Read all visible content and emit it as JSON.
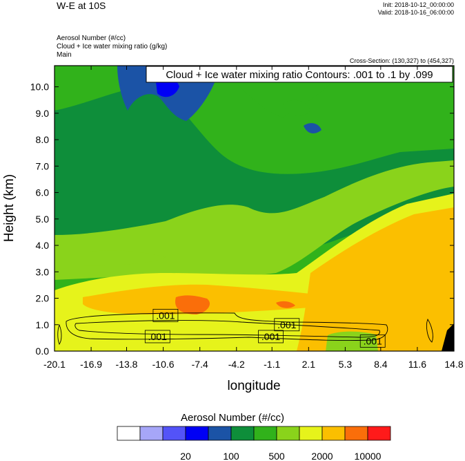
{
  "header": {
    "title": "W-E at 10S",
    "init": "Init: 2018-10-12_00:00:00",
    "valid": "Valid: 2018-10-16_06:00:00",
    "fields": [
      "Aerosol Number   (#/cc)",
      "Cloud + Ice water mixing ratio   (g/kg)",
      "Main"
    ],
    "cross_section": "Cross-Section: (130,327) to (454,327)"
  },
  "chart_data": {
    "type": "heatmap",
    "title": "W-E at 10S",
    "xlabel": "longitude",
    "ylabel": "Height (km)",
    "xticks": [
      "-20.1",
      "-16.9",
      "-13.8",
      "-10.6",
      "-7.4",
      "-4.2",
      "-1.1",
      "2.1",
      "5.3",
      "8.4",
      "11.6",
      "14.8"
    ],
    "xlim": [
      -20.1,
      14.8
    ],
    "yticks": [
      "0.0",
      "1.0",
      "2.0",
      "3.0",
      "4.0",
      "5.0",
      "6.0",
      "7.0",
      "8.0",
      "9.0",
      "10.0"
    ],
    "ylim": [
      0,
      10.8
    ],
    "contour_info": "Cloud + Ice water mixing ratio Contours: .001 to .1 by .099",
    "contour_labels": [
      {
        "text": ".001",
        "x": -10.4,
        "y": 1.35
      },
      {
        "text": ".001",
        "x": 0.2,
        "y": 1.0
      },
      {
        "text": ".001",
        "x": -11.1,
        "y": 0.55
      },
      {
        "text": ".001",
        "x": -1.2,
        "y": 0.55
      },
      {
        "text": ".001",
        "x": 7.7,
        "y": 0.38
      }
    ],
    "colorbar": {
      "title": "Aerosol Number  (#/cc)",
      "colors": [
        "#ffffff",
        "#a6a6f8",
        "#5353f8",
        "#0000f5",
        "#1b53a6",
        "#0e8e3a",
        "#31b21b",
        "#8ad31b",
        "#e6f31b",
        "#fbbf00",
        "#fa6e0a",
        "#ff1a1a"
      ],
      "labels": [
        {
          "text": "20",
          "boundary": 3
        },
        {
          "text": "100",
          "boundary": 5
        },
        {
          "text": "500",
          "boundary": 7
        },
        {
          "text": "2000",
          "boundary": 9
        },
        {
          "text": "10000",
          "boundary": 11
        }
      ]
    }
  }
}
